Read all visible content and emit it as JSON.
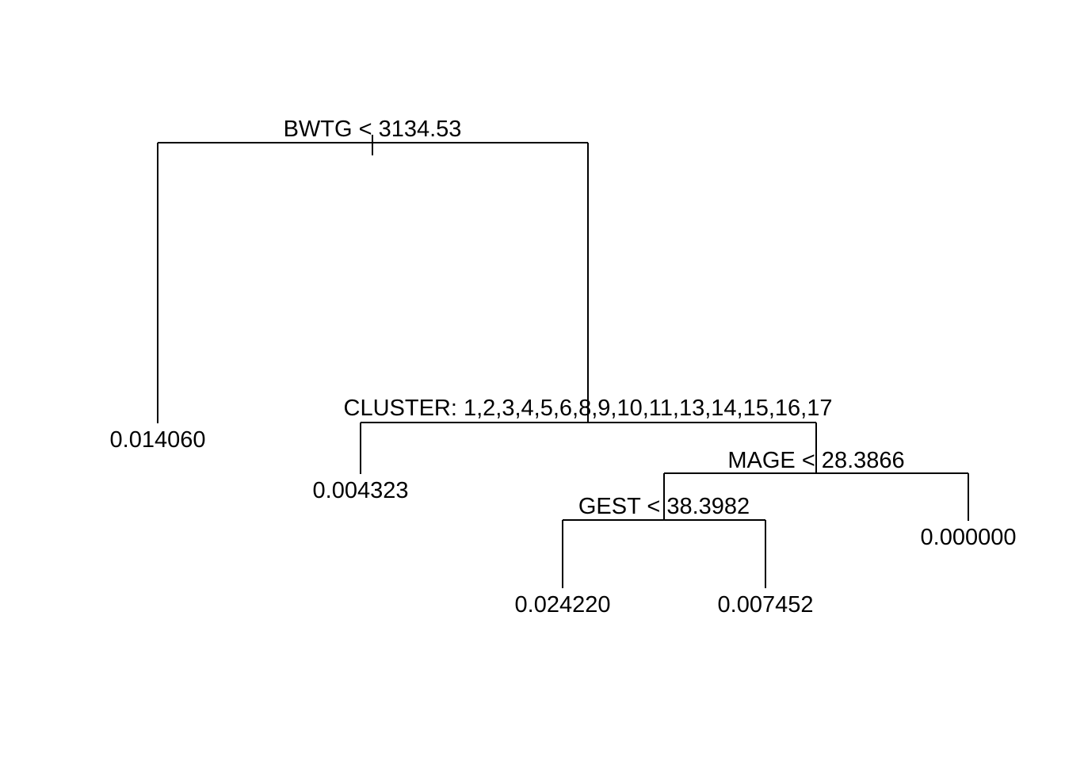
{
  "tree": {
    "splits": {
      "root": "BWTG < 3134.53",
      "cluster": "CLUSTER: 1,2,3,4,5,6,8,9,10,11,13,14,15,16,17",
      "mage": "MAGE < 28.3866",
      "gest": "GEST < 38.3982"
    },
    "leaves": {
      "bwtg_left": "0.014060",
      "cluster_left": "0.004323",
      "mage_right": "0.000000",
      "gest_left": "0.024220",
      "gest_right": "0.007452"
    }
  }
}
